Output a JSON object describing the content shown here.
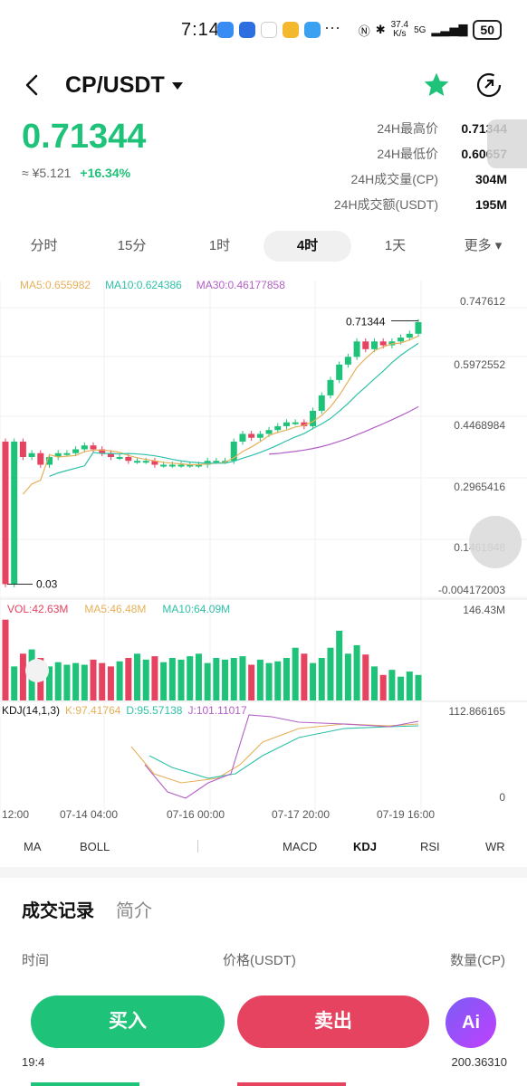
{
  "status_bar": {
    "time": "7:14",
    "speed_top": "37.4",
    "speed_bottom": "K/s",
    "network": "5G",
    "battery": "50"
  },
  "header": {
    "pair": "CP/USDT"
  },
  "price": {
    "last": "0.71344",
    "cny": "≈ ¥5.121",
    "change": "+16.34%"
  },
  "stats": [
    {
      "label": "24H最高价",
      "value": "0.71344"
    },
    {
      "label": "24H最低价",
      "value": "0.60657"
    },
    {
      "label": "24H成交量(CP)",
      "value": "304M"
    },
    {
      "label": "24H成交额(USDT)",
      "value": "195M"
    }
  ],
  "intervals": [
    "分时",
    "15分",
    "1时",
    "4时",
    "1天",
    "更多 ▾"
  ],
  "active_interval": "4时",
  "ma_legend": {
    "ma5": "MA5:0.655982",
    "ma10": "MA10:0.624386",
    "ma30": "MA30:0.46177858"
  },
  "price_axis": [
    "0.747612",
    "0.5972552",
    "0.4468984",
    "0.2965416",
    "0.1461848",
    "-0.004172003"
  ],
  "price_marker": "0.71344",
  "low_marker": "0.03",
  "vol_legend": {
    "vol": "VOL:42.63M",
    "ma5": "MA5:46.48M",
    "ma10": "MA10:64.09M"
  },
  "vol_axis_max": "146.43M",
  "kdj_legend": {
    "name": "KDJ(14,1,3)",
    "k": "K:97.41764",
    "d": "D:95.57138",
    "j": "J:101.11017"
  },
  "kdj_axis": {
    "max": "112.866165",
    "min": "0"
  },
  "time_axis": [
    "12:00",
    "07-14 04:00",
    "07-16 00:00",
    "07-17 20:00",
    "07-19 16:00"
  ],
  "indicators": [
    "MA",
    "BOLL",
    "MACD",
    "KDJ",
    "RSI",
    "WR"
  ],
  "active_indicator": "KDJ",
  "section_tabs": {
    "trades": "成交记录",
    "intro": "简介"
  },
  "table_columns": {
    "time": "时间",
    "price": "价格(USDT)",
    "amount": "数量(CP)"
  },
  "peek_row": {
    "time": "19:4",
    "amount": "200.36310"
  },
  "actions": {
    "buy": "买入",
    "sell": "卖出",
    "ai": "Ai"
  },
  "colors": {
    "up": "#1fc279",
    "down": "#e5435f",
    "ma5": "#e6b05a",
    "ma10": "#2fc0a8",
    "ma30": "#b35fc7"
  },
  "chart_data": {
    "type": "candlestick",
    "y_range": [
      -0.004172003,
      0.747612
    ],
    "candles_close_approx": [
      0.03,
      0.4,
      0.36,
      0.37,
      0.34,
      0.36,
      0.37,
      0.37,
      0.38,
      0.39,
      0.38,
      0.37,
      0.36,
      0.36,
      0.35,
      0.35,
      0.35,
      0.34,
      0.34,
      0.34,
      0.34,
      0.34,
      0.34,
      0.35,
      0.35,
      0.35,
      0.4,
      0.42,
      0.41,
      0.42,
      0.43,
      0.44,
      0.45,
      0.45,
      0.44,
      0.48,
      0.52,
      0.56,
      0.6,
      0.62,
      0.66,
      0.64,
      0.66,
      0.65,
      0.66,
      0.67,
      0.68,
      0.71
    ]
  }
}
